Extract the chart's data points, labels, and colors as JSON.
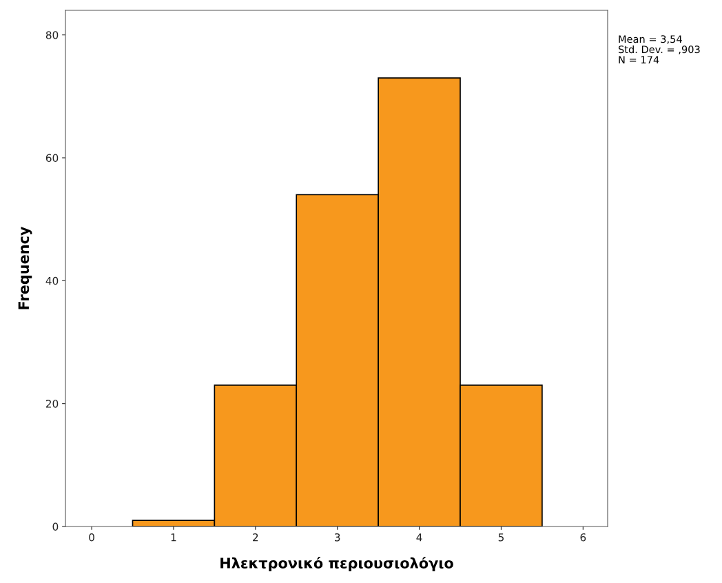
{
  "chart_data": {
    "type": "histogram",
    "xlabel": "Ηλεκτρονικό περιουσιολόγιο",
    "ylabel": "Frequency",
    "bins": [
      0.5,
      1.5,
      2.5,
      3.5,
      4.5,
      5.5
    ],
    "values": [
      1,
      23,
      54,
      73,
      23
    ],
    "color": "#f7981d",
    "xlim": [
      -0.32,
      6.3
    ],
    "xticks": [
      0,
      1,
      2,
      3,
      4,
      5,
      6
    ],
    "ylim": [
      0,
      84
    ],
    "yticks": [
      0,
      20,
      40,
      60,
      80
    ],
    "grid": false,
    "annotations": [
      "Mean = 3,54",
      "Std. Dev. = ,903",
      "N = 174"
    ]
  }
}
